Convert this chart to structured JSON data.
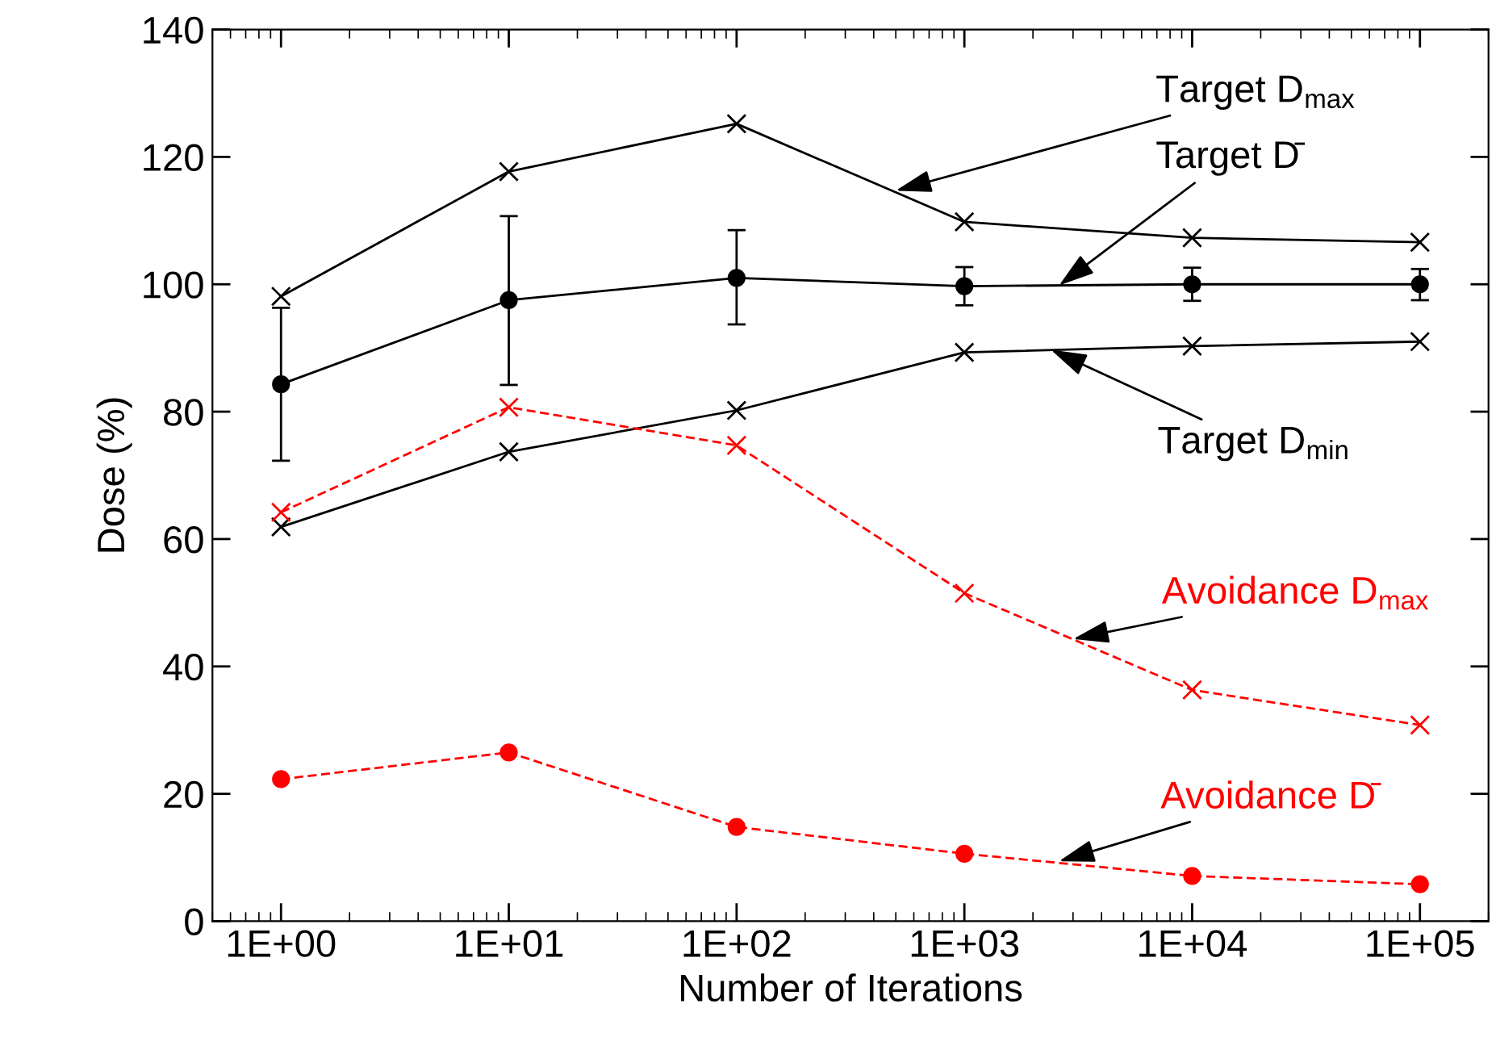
{
  "chart_data": {
    "type": "line",
    "xlabel": "Number of Iterations",
    "ylabel": "Dose (%)",
    "x": [
      1,
      10,
      100,
      1000,
      10000,
      100000
    ],
    "series": [
      {
        "color": "#000000",
        "marker": "cross",
        "line_style": "solid",
        "values": [
          98.1,
          117.7,
          125.2,
          109.8,
          107.3,
          106.6
        ]
      },
      {
        "color": "#000000",
        "marker": "circle",
        "line_style": "solid",
        "values": [
          84.3,
          97.5,
          101,
          99.7,
          100,
          100
        ],
        "errors": [
          [
            72.3,
            96.3
          ],
          [
            84.2,
            110.7
          ],
          [
            93.7,
            108.5
          ],
          [
            96.7,
            102.7
          ],
          [
            97.4,
            102.6
          ],
          [
            97.5,
            102.4
          ]
        ]
      },
      {
        "color": "#000000",
        "marker": "cross",
        "line_style": "solid",
        "values": [
          61.9,
          73.7,
          80.2,
          89.3,
          90.3,
          91.0
        ]
      },
      {
        "color": "#ff0000",
        "marker": "cross",
        "line_style": "dashed",
        "values": [
          64.2,
          80.7,
          74.7,
          51.5,
          36.3,
          30.8
        ]
      },
      {
        "color": "#ff0000",
        "marker": "circle",
        "line_style": "dashed",
        "values": [
          22.3,
          26.5,
          14.8,
          10.6,
          7.1,
          5.8
        ]
      }
    ],
    "annotations": [
      {
        "text": "Target D$_{max}$",
        "x": 500,
        "y": 114.7
      },
      {
        "text": "Target D̄",
        "x": 2600,
        "y": 99.8
      },
      {
        "text": "Target D$_{min}$",
        "x": 2400,
        "y": 89.7
      },
      {
        "text": "Avoidance D$_{max}$",
        "x": 3000,
        "y": 44.3
      },
      {
        "text": "Avoidance D̄",
        "x": 2600,
        "y": 9.4
      }
    ],
    "log": "x",
    "xlim": [
      0.5,
      200000
    ],
    "xticks": [
      {
        "value": 1,
        "label": "1E+00"
      },
      {
        "value": 10,
        "label": "1E+01"
      },
      {
        "value": 100,
        "label": "1E+02"
      },
      {
        "value": 1000,
        "label": "1E+03"
      },
      {
        "value": 10000,
        "label": "1E+04"
      },
      {
        "value": 100000,
        "label": "1E+05"
      }
    ],
    "ylim": [
      0,
      140
    ],
    "yticks": [
      0,
      20,
      40,
      60,
      80,
      100,
      120,
      140
    ],
    "grid": false,
    "legend": false
  }
}
